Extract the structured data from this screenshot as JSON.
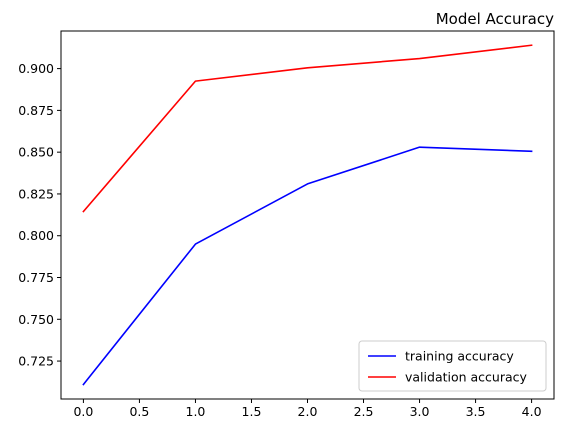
{
  "chart_data": {
    "type": "line",
    "title": "Model Accuracy",
    "xlabel": "",
    "ylabel": "",
    "x": [
      0,
      1,
      2,
      3,
      4
    ],
    "xlim": [
      -0.2,
      4.2
    ],
    "ylim": [
      0.7023,
      0.9225
    ],
    "x_ticks": [
      0.0,
      0.5,
      1.0,
      1.5,
      2.0,
      2.5,
      3.0,
      3.5,
      4.0
    ],
    "x_tick_labels": [
      "0.0",
      "0.5",
      "1.0",
      "1.5",
      "2.0",
      "2.5",
      "3.0",
      "3.5",
      "4.0"
    ],
    "y_ticks": [
      0.725,
      0.75,
      0.775,
      0.8,
      0.825,
      0.85,
      0.875,
      0.9
    ],
    "y_tick_labels": [
      "0.725",
      "0.750",
      "0.775",
      "0.800",
      "0.825",
      "0.850",
      "0.875",
      "0.900"
    ],
    "grid": false,
    "legend_position": "lower-right",
    "series": [
      {
        "name": "training accuracy",
        "color": "#0000ff",
        "values": [
          0.711,
          0.795,
          0.831,
          0.853,
          0.8505
        ]
      },
      {
        "name": "validation accuracy",
        "color": "#ff0000",
        "values": [
          0.8145,
          0.8925,
          0.9005,
          0.906,
          0.914
        ]
      }
    ]
  }
}
